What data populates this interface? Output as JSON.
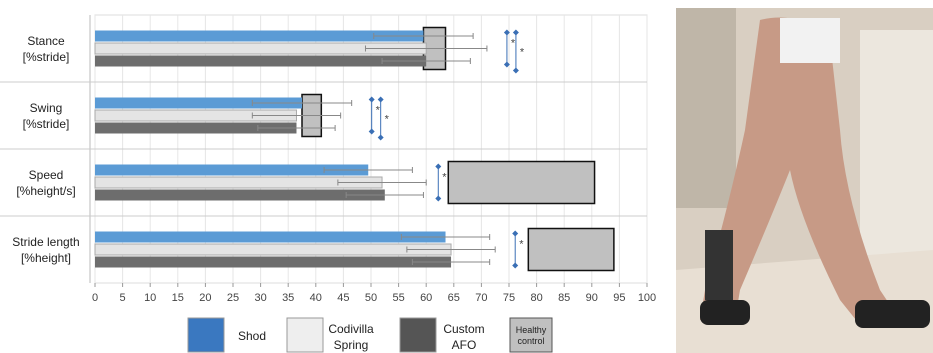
{
  "chart_data": {
    "type": "bar",
    "orientation": "horizontal",
    "categories": [
      "Stance\n[%stride]",
      "Swing\n[%stride]",
      "Speed\n[%height/s]",
      "Stride length\n[%height]"
    ],
    "series": [
      {
        "name": "Shod",
        "color": "#5b9bd5",
        "values": [
          59.5,
          37.5,
          49.5,
          63.5
        ],
        "errors": [
          9,
          9,
          8,
          8
        ]
      },
      {
        "name": "Codivilla\nSpring",
        "color": "#e4e4e4",
        "values": [
          60,
          36.5,
          52,
          64.5
        ],
        "errors": [
          11,
          8,
          8,
          8
        ]
      },
      {
        "name": "Custom\nAFO",
        "color": "#6d6d6d",
        "values": [
          60,
          36.5,
          52.5,
          64.5
        ],
        "errors": [
          8,
          7,
          7,
          7
        ]
      }
    ],
    "healthy_control": {
      "name": "Healthy\ncontrol",
      "color": "#c0c0c0",
      "low": [
        59.5,
        37.5,
        64,
        78.5
      ],
      "high": [
        63.5,
        41,
        90.5,
        94
      ]
    },
    "significance_label": "*",
    "xlim": [
      0,
      100
    ],
    "xticks": [
      0,
      5,
      10,
      15,
      20,
      25,
      30,
      35,
      40,
      45,
      50,
      55,
      60,
      65,
      70,
      75,
      80,
      85,
      90,
      95,
      100
    ],
    "grid": true
  }
}
